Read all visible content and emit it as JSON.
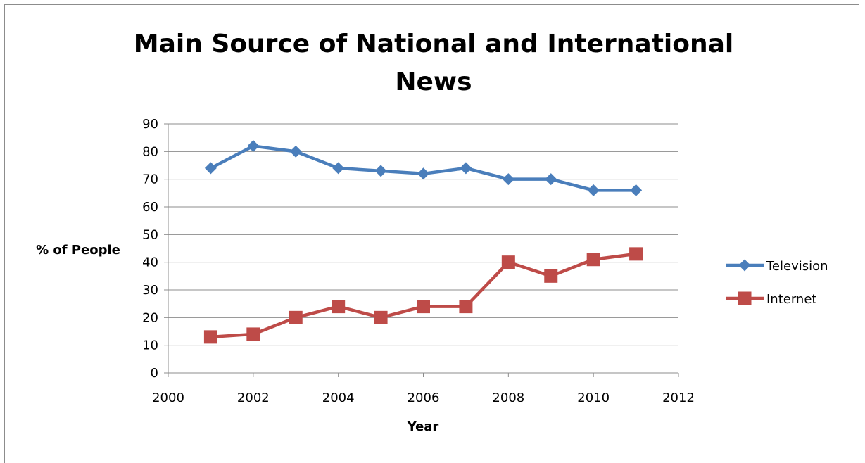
{
  "chart_data": {
    "type": "line",
    "title_lines": [
      "Main Source of National and International",
      "News"
    ],
    "xlabel": "Year",
    "ylabel": "% of People",
    "xlim": [
      2000,
      2012
    ],
    "ylim": [
      0,
      90
    ],
    "x_ticks": [
      2000,
      2002,
      2004,
      2006,
      2008,
      2010,
      2012
    ],
    "y_ticks": [
      0,
      10,
      20,
      30,
      40,
      50,
      60,
      70,
      80,
      90
    ],
    "grid": "horizontal",
    "legend_position": "right",
    "x": [
      2001,
      2002,
      2003,
      2004,
      2005,
      2006,
      2007,
      2008,
      2009,
      2010,
      2011
    ],
    "series": [
      {
        "name": "Television",
        "marker": "diamond",
        "color": "#4a7ebb",
        "values": [
          74,
          82,
          80,
          74,
          73,
          72,
          74,
          70,
          70,
          66,
          66
        ]
      },
      {
        "name": "Internet",
        "marker": "square",
        "color": "#be4b48",
        "values": [
          13,
          14,
          20,
          24,
          20,
          24,
          24,
          40,
          35,
          41,
          43
        ]
      }
    ]
  }
}
